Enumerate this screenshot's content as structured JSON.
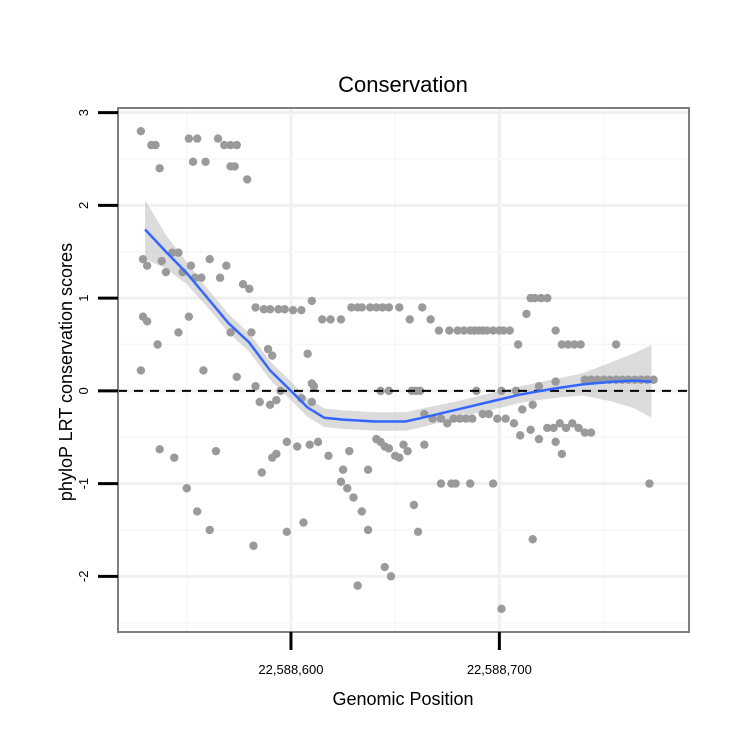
{
  "chart_data": {
    "type": "scatter",
    "title": "Conservation",
    "xlabel": "Genomic Position",
    "ylabel": "phyloP LRT conservation scores",
    "xlim": [
      22588517,
      22588791
    ],
    "ylim": [
      -2.6,
      3.05
    ],
    "x_ticks": [
      22588600,
      22588700
    ],
    "x_tick_labels": [
      "22,588,600",
      "22,588,700"
    ],
    "y_ticks": [
      -2,
      -1,
      0,
      1,
      2,
      3
    ],
    "y_tick_labels": [
      "-2",
      "-1",
      "0",
      "1",
      "2",
      "3"
    ],
    "reference_line": {
      "y": 0,
      "style": "dashed"
    },
    "point_color": "#9a9a9a",
    "fit_color": "#3366ff",
    "band_color": "#bdbdbd",
    "points": [
      [
        22588528,
        2.8
      ],
      [
        22588533,
        2.65
      ],
      [
        22588535,
        2.65
      ],
      [
        22588537,
        2.4
      ],
      [
        22588551,
        2.72
      ],
      [
        22588555,
        2.72
      ],
      [
        22588553,
        2.47
      ],
      [
        22588559,
        2.47
      ],
      [
        22588565,
        2.72
      ],
      [
        22588568,
        2.65
      ],
      [
        22588571,
        2.65
      ],
      [
        22588574,
        2.65
      ],
      [
        22588571,
        2.42
      ],
      [
        22588573,
        2.42
      ],
      [
        22588579,
        2.28
      ],
      [
        22588529,
        1.42
      ],
      [
        22588531,
        1.35
      ],
      [
        22588538,
        1.4
      ],
      [
        22588540,
        1.28
      ],
      [
        22588543,
        1.49
      ],
      [
        22588546,
        1.49
      ],
      [
        22588548,
        1.28
      ],
      [
        22588552,
        1.35
      ],
      [
        22588554,
        1.22
      ],
      [
        22588557,
        1.22
      ],
      [
        22588561,
        1.42
      ],
      [
        22588566,
        1.22
      ],
      [
        22588569,
        1.35
      ],
      [
        22588577,
        1.15
      ],
      [
        22588580,
        1.1
      ],
      [
        22588529,
        0.8
      ],
      [
        22588531,
        0.75
      ],
      [
        22588536,
        0.5
      ],
      [
        22588546,
        0.63
      ],
      [
        22588551,
        0.8
      ],
      [
        22588571,
        0.63
      ],
      [
        22588581,
        0.63
      ],
      [
        22588583,
        0.9
      ],
      [
        22588587,
        0.88
      ],
      [
        22588590,
        0.88
      ],
      [
        22588594,
        0.88
      ],
      [
        22588597,
        0.88
      ],
      [
        22588601,
        0.87
      ],
      [
        22588605,
        0.87
      ],
      [
        22588610,
        0.97
      ],
      [
        22588615,
        0.77
      ],
      [
        22588619,
        0.77
      ],
      [
        22588624,
        0.77
      ],
      [
        22588629,
        0.9
      ],
      [
        22588632,
        0.9
      ],
      [
        22588634,
        0.9
      ],
      [
        22588638,
        0.9
      ],
      [
        22588641,
        0.9
      ],
      [
        22588644,
        0.9
      ],
      [
        22588647,
        0.9
      ],
      [
        22588652,
        0.9
      ],
      [
        22588657,
        0.77
      ],
      [
        22588663,
        0.9
      ],
      [
        22588667,
        0.77
      ],
      [
        22588671,
        0.65
      ],
      [
        22588676,
        0.65
      ],
      [
        22588680,
        0.65
      ],
      [
        22588683,
        0.65
      ],
      [
        22588686,
        0.65
      ],
      [
        22588688,
        0.65
      ],
      [
        22588690,
        0.65
      ],
      [
        22588692,
        0.65
      ],
      [
        22588694,
        0.65
      ],
      [
        22588697,
        0.65
      ],
      [
        22588700,
        0.65
      ],
      [
        22588702,
        0.65
      ],
      [
        22588705,
        0.65
      ],
      [
        22588709,
        0.5
      ],
      [
        22588713,
        0.83
      ],
      [
        22588715,
        1.0
      ],
      [
        22588717,
        1.0
      ],
      [
        22588720,
        1.0
      ],
      [
        22588723,
        1.0
      ],
      [
        22588727,
        0.65
      ],
      [
        22588730,
        0.5
      ],
      [
        22588733,
        0.5
      ],
      [
        22588736,
        0.5
      ],
      [
        22588739,
        0.5
      ],
      [
        22588756,
        0.5
      ],
      [
        22588528,
        0.22
      ],
      [
        22588558,
        0.22
      ],
      [
        22588574,
        0.15
      ],
      [
        22588589,
        0.45
      ],
      [
        22588591,
        0.38
      ],
      [
        22588595,
        0.0
      ],
      [
        22588610,
        0.08
      ],
      [
        22588611,
        0.05
      ],
      [
        22588643,
        0.0
      ],
      [
        22588647,
        0.0
      ],
      [
        22588658,
        0.0
      ],
      [
        22588660,
        0.0
      ],
      [
        22588662,
        0.0
      ],
      [
        22588689,
        0.0
      ],
      [
        22588701,
        0.0
      ],
      [
        22588708,
        0.0
      ],
      [
        22588719,
        0.05
      ],
      [
        22588727,
        0.1
      ],
      [
        22588741,
        0.12
      ],
      [
        22588744,
        0.12
      ],
      [
        22588747,
        0.12
      ],
      [
        22588750,
        0.12
      ],
      [
        22588753,
        0.12
      ],
      [
        22588756,
        0.12
      ],
      [
        22588759,
        0.12
      ],
      [
        22588762,
        0.12
      ],
      [
        22588765,
        0.12
      ],
      [
        22588768,
        0.12
      ],
      [
        22588771,
        0.12
      ],
      [
        22588774,
        0.12
      ],
      [
        22588583,
        0.05
      ],
      [
        22588585,
        -0.12
      ],
      [
        22588590,
        -0.15
      ],
      [
        22588593,
        -0.1
      ],
      [
        22588605,
        -0.08
      ],
      [
        22588608,
        0.4
      ],
      [
        22588610,
        -0.12
      ],
      [
        22588664,
        -0.25
      ],
      [
        22588668,
        -0.3
      ],
      [
        22588672,
        -0.3
      ],
      [
        22588675,
        -0.35
      ],
      [
        22588678,
        -0.3
      ],
      [
        22588681,
        -0.3
      ],
      [
        22588684,
        -0.3
      ],
      [
        22588687,
        -0.3
      ],
      [
        22588692,
        -0.25
      ],
      [
        22588695,
        -0.25
      ],
      [
        22588699,
        -0.3
      ],
      [
        22588703,
        -0.3
      ],
      [
        22588707,
        -0.35
      ],
      [
        22588711,
        -0.2
      ],
      [
        22588716,
        -0.15
      ],
      [
        22588723,
        -0.4
      ],
      [
        22588726,
        -0.4
      ],
      [
        22588729,
        -0.35
      ],
      [
        22588732,
        -0.4
      ],
      [
        22588735,
        -0.35
      ],
      [
        22588738,
        -0.4
      ],
      [
        22588741,
        -0.45
      ],
      [
        22588744,
        -0.45
      ],
      [
        22588537,
        -0.63
      ],
      [
        22588544,
        -0.72
      ],
      [
        22588564,
        -0.65
      ],
      [
        22588586,
        -0.88
      ],
      [
        22588591,
        -0.72
      ],
      [
        22588593,
        -0.68
      ],
      [
        22588598,
        -0.55
      ],
      [
        22588603,
        -0.6
      ],
      [
        22588609,
        -0.58
      ],
      [
        22588613,
        -0.55
      ],
      [
        22588618,
        -0.7
      ],
      [
        22588625,
        -0.85
      ],
      [
        22588628,
        -0.65
      ],
      [
        22588637,
        -0.85
      ],
      [
        22588641,
        -0.52
      ],
      [
        22588643,
        -0.55
      ],
      [
        22588645,
        -0.6
      ],
      [
        22588647,
        -0.62
      ],
      [
        22588650,
        -0.7
      ],
      [
        22588652,
        -0.72
      ],
      [
        22588654,
        -0.58
      ],
      [
        22588656,
        -0.65
      ],
      [
        22588664,
        -0.58
      ],
      [
        22588710,
        -0.48
      ],
      [
        22588715,
        -0.42
      ],
      [
        22588719,
        -0.52
      ],
      [
        22588727,
        -0.55
      ],
      [
        22588730,
        -0.68
      ],
      [
        22588550,
        -1.05
      ],
      [
        22588555,
        -1.3
      ],
      [
        22588561,
        -1.5
      ],
      [
        22588582,
        -1.67
      ],
      [
        22588598,
        -1.52
      ],
      [
        22588606,
        -1.42
      ],
      [
        22588624,
        -0.98
      ],
      [
        22588627,
        -1.05
      ],
      [
        22588630,
        -1.15
      ],
      [
        22588634,
        -1.3
      ],
      [
        22588637,
        -1.5
      ],
      [
        22588659,
        -1.23
      ],
      [
        22588661,
        -1.52
      ],
      [
        22588672,
        -1.0
      ],
      [
        22588677,
        -1.0
      ],
      [
        22588679,
        -1.0
      ],
      [
        22588686,
        -1.0
      ],
      [
        22588697,
        -1.0
      ],
      [
        22588716,
        -1.6
      ],
      [
        22588772,
        -1.0
      ],
      [
        22588632,
        -2.1
      ],
      [
        22588645,
        -1.9
      ],
      [
        22588648,
        -2.0
      ],
      [
        22588701,
        -2.35
      ]
    ],
    "smooth_fit": [
      [
        22588530,
        1.74,
        0.32
      ],
      [
        22588540,
        1.5,
        0.18
      ],
      [
        22588550,
        1.27,
        0.12
      ],
      [
        22588560,
        1.0,
        0.1
      ],
      [
        22588570,
        0.73,
        0.1
      ],
      [
        22588580,
        0.52,
        0.1
      ],
      [
        22588590,
        0.22,
        0.1
      ],
      [
        22588600,
        0.0,
        0.1
      ],
      [
        22588608,
        -0.18,
        0.1
      ],
      [
        22588616,
        -0.29,
        0.1
      ],
      [
        22588625,
        -0.31,
        0.1
      ],
      [
        22588640,
        -0.33,
        0.1
      ],
      [
        22588655,
        -0.33,
        0.1
      ],
      [
        22588665,
        -0.28,
        0.1
      ],
      [
        22588680,
        -0.2,
        0.09
      ],
      [
        22588695,
        -0.12,
        0.09
      ],
      [
        22588710,
        -0.04,
        0.09
      ],
      [
        22588725,
        0.02,
        0.1
      ],
      [
        22588740,
        0.07,
        0.12
      ],
      [
        22588755,
        0.1,
        0.22
      ],
      [
        22588765,
        0.11,
        0.3
      ],
      [
        22588773,
        0.1,
        0.39
      ]
    ]
  }
}
